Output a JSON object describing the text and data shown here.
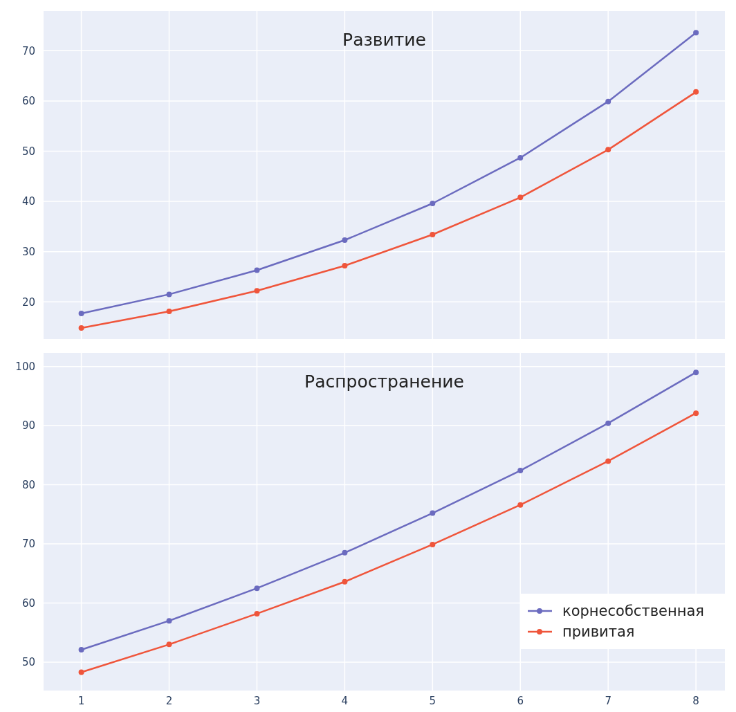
{
  "chart_data": [
    {
      "type": "line",
      "title": "Развитие",
      "x": [
        1,
        2,
        3,
        4,
        5,
        6,
        7,
        8
      ],
      "xlim": [
        0.57,
        8.33
      ],
      "xticks": [
        1,
        2,
        3,
        4,
        5,
        6,
        7,
        8
      ],
      "ylim": [
        12.6,
        77.9
      ],
      "yticks": [
        20,
        30,
        40,
        50,
        60,
        70
      ],
      "grid": true,
      "legend": false,
      "tick_labels": "y",
      "marker": "circle",
      "line_style": "solid",
      "series": [
        {
          "color": "#6b6bbf",
          "values": [
            17.7,
            21.5,
            26.3,
            32.3,
            39.6,
            48.7,
            59.9,
            73.6
          ]
        },
        {
          "color": "#ef553b",
          "values": [
            14.8,
            18.1,
            22.2,
            27.2,
            33.4,
            40.8,
            50.3,
            61.8
          ]
        }
      ]
    },
    {
      "type": "line",
      "title": "Распространение",
      "x": [
        1,
        2,
        3,
        4,
        5,
        6,
        7,
        8
      ],
      "xlim": [
        0.57,
        8.33
      ],
      "xticks": [
        1,
        2,
        3,
        4,
        5,
        6,
        7,
        8
      ],
      "ylim": [
        45.2,
        102.3
      ],
      "yticks": [
        50,
        60,
        70,
        80,
        90,
        100
      ],
      "grid": true,
      "legend": "bottom right",
      "marker": "circle",
      "line_style": "solid",
      "series": [
        {
          "name": "корнесобственная",
          "color": "#6b6bbf",
          "values": [
            52.1,
            57.0,
            62.5,
            68.5,
            75.2,
            82.4,
            90.4,
            99.0
          ]
        },
        {
          "name": "привитая",
          "color": "#ef553b",
          "values": [
            48.3,
            53.0,
            58.2,
            63.6,
            69.9,
            76.6,
            84.0,
            92.1
          ]
        }
      ]
    }
  ]
}
